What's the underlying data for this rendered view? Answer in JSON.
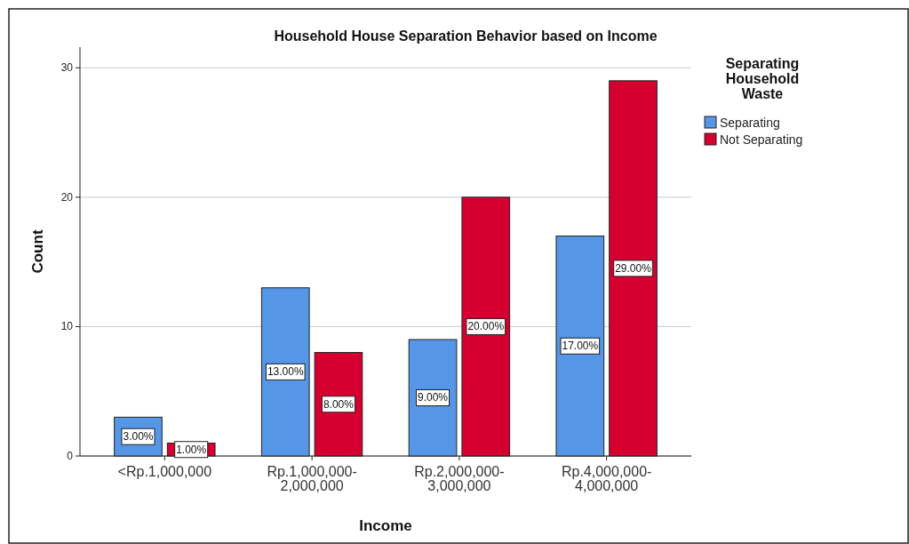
{
  "chart_data": {
    "type": "bar",
    "title": "Household House Separation Behavior based on Income",
    "xlabel": "Income",
    "ylabel": "Count",
    "legend_title": "Separating Household Waste",
    "categories": [
      "<Rp.1,000,000",
      "Rp.1,000,000-2,000,000",
      "Rp.2,000,000-3,000,000",
      "Rp.4,000,000-4,000,000"
    ],
    "series": [
      {
        "name": "Separating",
        "color": "#5596e6",
        "values": [
          3,
          13,
          9,
          17
        ],
        "value_labels": [
          "3.00%",
          "13.00%",
          "9.00%",
          "17.00%"
        ]
      },
      {
        "name": "Not Separating",
        "color": "#d5002f",
        "values": [
          1,
          8,
          20,
          29
        ],
        "value_labels": [
          "1.00%",
          "8.00%",
          "20.00%",
          "29.00%"
        ]
      }
    ],
    "ylim": [
      0,
      31.6
    ],
    "yticks": [
      0,
      10,
      20,
      30
    ],
    "grid": "y",
    "legend": "right"
  }
}
